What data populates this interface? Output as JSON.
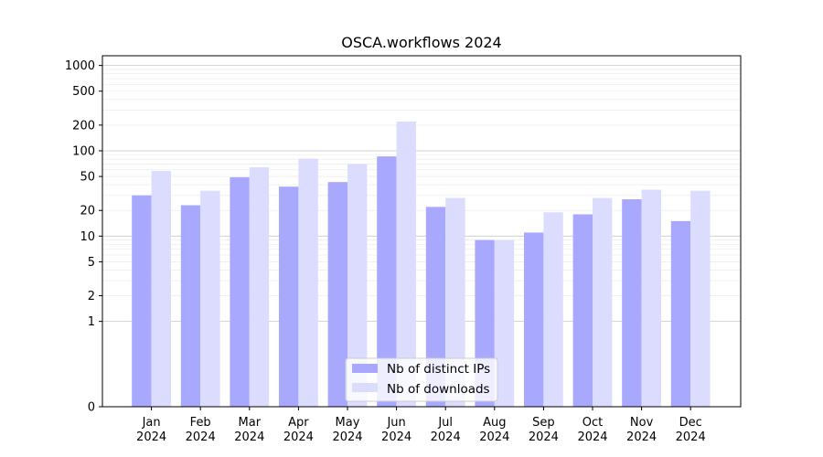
{
  "chart_data": {
    "type": "bar",
    "title": "OSCA.workflows 2024",
    "xlabel": "",
    "ylabel": "",
    "scale": "symlog",
    "ylim": [
      0,
      1300
    ],
    "y_ticks": [
      {
        "value": 0,
        "label": "0"
      },
      {
        "value": 1,
        "label": "1"
      },
      {
        "value": 2,
        "label": "2"
      },
      {
        "value": 5,
        "label": "5"
      },
      {
        "value": 10,
        "label": "10"
      },
      {
        "value": 20,
        "label": "20"
      },
      {
        "value": 50,
        "label": "50"
      },
      {
        "value": 100,
        "label": "100"
      },
      {
        "value": 200,
        "label": "200"
      },
      {
        "value": 500,
        "label": "500"
      },
      {
        "value": 1000,
        "label": "1000"
      }
    ],
    "categories": [
      {
        "month": "Jan",
        "year": "2024"
      },
      {
        "month": "Feb",
        "year": "2024"
      },
      {
        "month": "Mar",
        "year": "2024"
      },
      {
        "month": "Apr",
        "year": "2024"
      },
      {
        "month": "May",
        "year": "2024"
      },
      {
        "month": "Jun",
        "year": "2024"
      },
      {
        "month": "Jul",
        "year": "2024"
      },
      {
        "month": "Aug",
        "year": "2024"
      },
      {
        "month": "Sep",
        "year": "2024"
      },
      {
        "month": "Oct",
        "year": "2024"
      },
      {
        "month": "Nov",
        "year": "2024"
      },
      {
        "month": "Dec",
        "year": "2024"
      }
    ],
    "series": [
      {
        "name": "Nb of distinct IPs",
        "color": "#a8a8ff",
        "values": [
          30,
          23,
          49,
          38,
          43,
          86,
          22,
          9,
          11,
          18,
          27,
          15
        ]
      },
      {
        "name": "Nb of downloads",
        "color": "#dcdcff",
        "values": [
          58,
          34,
          64,
          81,
          70,
          220,
          28,
          9,
          19,
          28,
          35,
          34
        ]
      }
    ],
    "legend": "lower-center",
    "grid": true
  }
}
